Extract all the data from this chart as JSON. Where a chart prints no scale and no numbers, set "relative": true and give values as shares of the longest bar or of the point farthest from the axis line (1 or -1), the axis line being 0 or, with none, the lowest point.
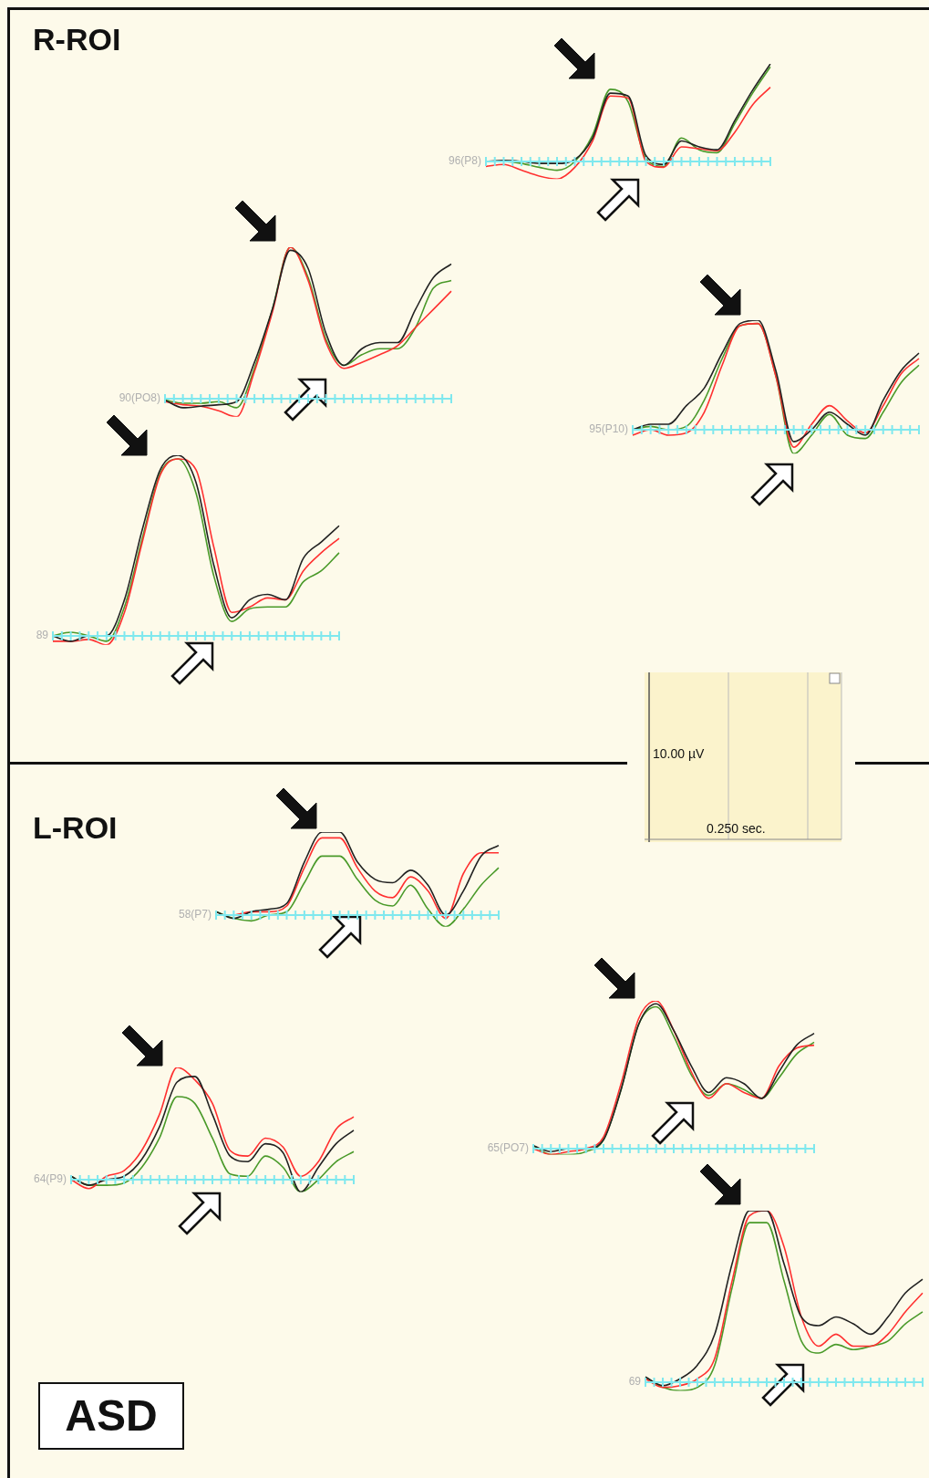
{
  "chart_data": [
    {
      "type": "line",
      "title": "96(P8)",
      "relative": true,
      "ref_lines": [
        {
          "axis": "y",
          "value": 0,
          "color": "#7fe8ee"
        }
      ],
      "categories": [
        null,
        null,
        null,
        null,
        null,
        null,
        null,
        null,
        null,
        null,
        null,
        null,
        null,
        null,
        null,
        null,
        null
      ],
      "series": [
        {
          "color": "#222222",
          "values": [
            0,
            0.01,
            0,
            -0.02,
            -0.02,
            0.02,
            0.24,
            0.7,
            0.67,
            0.06,
            -0.03,
            0.21,
            0.15,
            0.12,
            0.42,
            0.73,
            1
          ]
        },
        {
          "color": "#ff3030",
          "values": [
            -0.05,
            -0.03,
            -0.09,
            -0.15,
            -0.18,
            -0.06,
            0.21,
            0.67,
            0.65,
            0,
            -0.06,
            0.15,
            0.13,
            0.11,
            0.3,
            0.58,
            0.76
          ]
        },
        {
          "color": "#4a9a2a",
          "values": [
            0,
            0,
            -0.02,
            -0.06,
            -0.09,
            0,
            0.27,
            0.74,
            0.61,
            0.03,
            -0.05,
            0.24,
            0.12,
            0.09,
            0.39,
            0.7,
            0.97
          ]
        }
      ]
    },
    {
      "type": "line",
      "title": "90(PO8)",
      "relative": true,
      "ref_lines": [
        {
          "axis": "y",
          "value": 0,
          "color": "#7fe8ee"
        }
      ],
      "categories": [
        null,
        null,
        null,
        null,
        null,
        null,
        null,
        null,
        null,
        null,
        null,
        null,
        null,
        null,
        null,
        null,
        null
      ],
      "series": [
        {
          "color": "#222222",
          "values": [
            -0.01,
            -0.06,
            -0.05,
            -0.04,
            -0.02,
            0.24,
            0.59,
            0.98,
            0.86,
            0.43,
            0.22,
            0.33,
            0.37,
            0.37,
            0.59,
            0.8,
            0.89
          ]
        },
        {
          "color": "#ff3030",
          "values": [
            -0.02,
            -0.04,
            -0.05,
            -0.08,
            -0.12,
            0.18,
            0.57,
            1,
            0.78,
            0.37,
            0.2,
            0.24,
            0.29,
            0.35,
            0.47,
            0.59,
            0.71
          ]
        },
        {
          "color": "#4a9a2a",
          "values": [
            -0.01,
            -0.03,
            -0.03,
            -0.02,
            -0.06,
            0.2,
            0.59,
            1,
            0.8,
            0.39,
            0.22,
            0.29,
            0.33,
            0.33,
            0.47,
            0.73,
            0.78
          ]
        }
      ]
    },
    {
      "type": "line",
      "title": "95(P10)",
      "relative": true,
      "ref_lines": [
        {
          "axis": "y",
          "value": 0,
          "color": "#7fe8ee"
        }
      ],
      "categories": [
        null,
        null,
        null,
        null,
        null,
        null,
        null,
        null,
        null,
        null,
        null,
        null,
        null,
        null,
        null,
        null,
        null
      ],
      "series": [
        {
          "color": "#222222",
          "values": [
            0,
            0.05,
            0.05,
            0.22,
            0.38,
            0.7,
            0.97,
            1,
            0.54,
            -0.11,
            0,
            0.16,
            0.05,
            -0.05,
            0.27,
            0.54,
            0.7
          ]
        },
        {
          "color": "#ff3030",
          "values": [
            -0.05,
            0,
            -0.05,
            -0.03,
            0.16,
            0.59,
            0.95,
            0.97,
            0.49,
            -0.16,
            0.05,
            0.22,
            0.08,
            -0.03,
            0.22,
            0.51,
            0.65
          ]
        },
        {
          "color": "#4a9a2a",
          "values": [
            0,
            0.03,
            0,
            0.03,
            0.27,
            0.65,
            0.95,
            0.97,
            0.49,
            -0.22,
            -0.05,
            0.14,
            -0.05,
            -0.08,
            0.16,
            0.43,
            0.59
          ]
        }
      ]
    },
    {
      "type": "line",
      "title": "89",
      "relative": true,
      "ref_lines": [
        {
          "axis": "y",
          "value": 0,
          "color": "#7fe8ee"
        }
      ],
      "categories": [
        null,
        null,
        null,
        null,
        null,
        null,
        null,
        null,
        null,
        null,
        null,
        null,
        null,
        null,
        null,
        null,
        null
      ],
      "series": [
        {
          "color": "#222222",
          "values": [
            0,
            -0.03,
            0,
            0,
            0.2,
            0.59,
            0.92,
            1,
            0.85,
            0.39,
            0.1,
            0.2,
            0.23,
            0.2,
            0.43,
            0.52,
            0.61
          ]
        },
        {
          "color": "#ff3030",
          "values": [
            -0.03,
            -0.03,
            -0.02,
            -0.05,
            0.13,
            0.52,
            0.89,
            0.98,
            0.92,
            0.49,
            0.13,
            0.16,
            0.21,
            0.2,
            0.36,
            0.46,
            0.54
          ]
        },
        {
          "color": "#4a9a2a",
          "values": [
            0,
            0.02,
            0,
            -0.03,
            0.16,
            0.54,
            0.9,
            0.98,
            0.79,
            0.33,
            0.08,
            0.15,
            0.16,
            0.16,
            0.3,
            0.36,
            0.46
          ]
        }
      ]
    },
    {
      "type": "line",
      "title": "58(P7)",
      "relative": true,
      "ref_lines": [
        {
          "axis": "y",
          "value": 0,
          "color": "#7fe8ee"
        }
      ],
      "categories": [
        null,
        null,
        null,
        null,
        null,
        null,
        null,
        null,
        null,
        null,
        null,
        null,
        null,
        null,
        null,
        null,
        null
      ],
      "series": [
        {
          "color": "#222222",
          "values": [
            0.04,
            -0.04,
            0.04,
            0.07,
            0.14,
            0.64,
            1,
            1,
            0.64,
            0.43,
            0.39,
            0.54,
            0.36,
            0,
            0.29,
            0.71,
            0.84
          ]
        },
        {
          "color": "#ff3030",
          "values": [
            0,
            0,
            0.04,
            0.04,
            0.11,
            0.57,
            0.93,
            0.93,
            0.57,
            0.29,
            0.21,
            0.46,
            0.29,
            -0.04,
            0.5,
            0.75,
            0.75
          ]
        },
        {
          "color": "#4a9a2a",
          "values": [
            0.04,
            -0.04,
            -0.07,
            0,
            0.04,
            0.39,
            0.71,
            0.71,
            0.43,
            0.18,
            0.11,
            0.36,
            0.07,
            -0.14,
            0.07,
            0.36,
            0.57
          ]
        }
      ]
    },
    {
      "type": "line",
      "title": "64(P9)",
      "relative": true,
      "ref_lines": [
        {
          "axis": "y",
          "value": 0,
          "color": "#7fe8ee"
        }
      ],
      "categories": [
        null,
        null,
        null,
        null,
        null,
        null,
        null,
        null,
        null,
        null,
        null,
        null,
        null,
        null,
        null,
        null,
        null
      ],
      "series": [
        {
          "color": "#222222",
          "values": [
            0.03,
            -0.05,
            0,
            0.03,
            0.18,
            0.47,
            0.87,
            0.92,
            0.58,
            0.21,
            0.16,
            0.32,
            0.24,
            -0.11,
            0.11,
            0.32,
            0.44
          ]
        },
        {
          "color": "#ff3030",
          "values": [
            0,
            -0.08,
            0.03,
            0.08,
            0.26,
            0.58,
            1,
            0.89,
            0.68,
            0.26,
            0.21,
            0.37,
            0.29,
            0.03,
            0.16,
            0.45,
            0.56
          ]
        },
        {
          "color": "#4a9a2a",
          "values": [
            0.03,
            -0.05,
            -0.05,
            -0.03,
            0.11,
            0.37,
            0.74,
            0.68,
            0.37,
            0.05,
            0.03,
            0.21,
            0.11,
            -0.11,
            0,
            0.16,
            0.25
          ]
        }
      ]
    },
    {
      "type": "line",
      "title": "65(PO7)",
      "relative": true,
      "ref_lines": [
        {
          "axis": "y",
          "value": 0,
          "color": "#7fe8ee"
        }
      ],
      "categories": [
        null,
        null,
        null,
        null,
        null,
        null,
        null,
        null,
        null,
        null,
        null,
        null,
        null,
        null,
        null,
        null,
        null
      ],
      "series": [
        {
          "color": "#222222",
          "values": [
            0.02,
            -0.02,
            0,
            0,
            0.06,
            0.4,
            0.84,
            0.98,
            0.8,
            0.56,
            0.38,
            0.48,
            0.44,
            0.34,
            0.52,
            0.7,
            0.78
          ]
        },
        {
          "color": "#ff3030",
          "values": [
            0,
            -0.04,
            -0.02,
            0,
            0.08,
            0.44,
            0.88,
            1,
            0.8,
            0.52,
            0.34,
            0.44,
            0.38,
            0.34,
            0.56,
            0.68,
            0.7
          ]
        },
        {
          "color": "#4a9a2a",
          "values": [
            0.02,
            -0.04,
            -0.04,
            -0.02,
            0.06,
            0.4,
            0.84,
            0.96,
            0.76,
            0.5,
            0.36,
            0.44,
            0.4,
            0.34,
            0.48,
            0.64,
            0.72
          ]
        }
      ]
    },
    {
      "type": "line",
      "title": "69",
      "relative": true,
      "ref_lines": [
        {
          "axis": "y",
          "value": 0,
          "color": "#7fe8ee"
        }
      ],
      "categories": [
        null,
        null,
        null,
        null,
        null,
        null,
        null,
        null,
        null,
        null,
        null,
        null,
        null,
        null,
        null,
        null,
        null
      ],
      "series": [
        {
          "color": "#222222",
          "values": [
            0.03,
            -0.02,
            0.02,
            0.1,
            0.28,
            0.69,
            1,
            1,
            0.69,
            0.38,
            0.33,
            0.38,
            0.34,
            0.28,
            0.38,
            0.52,
            0.6
          ]
        },
        {
          "color": "#ff3030",
          "values": [
            0.02,
            -0.03,
            -0.02,
            0.02,
            0.14,
            0.59,
            0.97,
            1,
            0.79,
            0.38,
            0.21,
            0.28,
            0.21,
            0.21,
            0.28,
            0.41,
            0.52
          ]
        },
        {
          "color": "#4a9a2a",
          "values": [
            0.03,
            -0.03,
            -0.05,
            -0.03,
            0.1,
            0.55,
            0.93,
            0.93,
            0.59,
            0.24,
            0.17,
            0.22,
            0.19,
            0.21,
            0.24,
            0.34,
            0.41
          ]
        }
      ]
    },
    {
      "type": "other",
      "annotations": [
        "R-ROI",
        "L-ROI",
        "ASD",
        "10.00 µV",
        "0.250 sec."
      ]
    }
  ]
}
